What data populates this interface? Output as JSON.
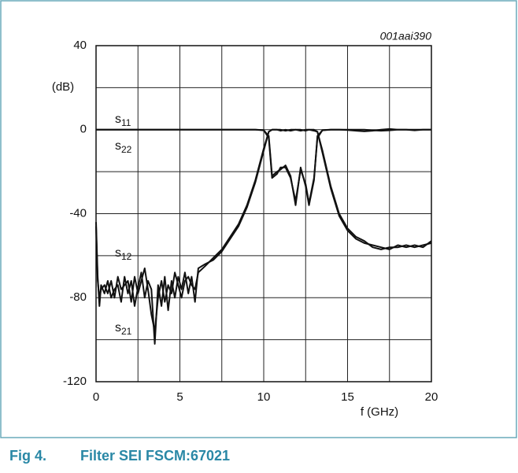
{
  "chart_data": {
    "type": "line",
    "title": "Filter SEI FSCM:67021",
    "figure_label": "Fig 4.",
    "figure_id": "001aai390",
    "y_label": "(dB)",
    "x_label": "f (GHz)",
    "xlim": [
      0,
      20
    ],
    "xticks": [
      0,
      5,
      10,
      15,
      20
    ],
    "xgrid": [
      2.5,
      7.5,
      12.5,
      17.5
    ],
    "ylim": [
      -120,
      40
    ],
    "yticks": [
      40,
      0,
      -40,
      -80,
      -120
    ],
    "ygrid": [
      20,
      -20,
      -60,
      -100
    ],
    "grid": true,
    "x": [
      0,
      0.1,
      0.2,
      0.3,
      0.5,
      0.7,
      0.9,
      1.1,
      1.3,
      1.5,
      1.7,
      1.9,
      2.1,
      2.3,
      2.5,
      2.7,
      2.9,
      3.1,
      3.3,
      3.5,
      3.7,
      3.9,
      4.1,
      4.3,
      4.5,
      4.7,
      4.9,
      5.1,
      5.3,
      5.5,
      5.7,
      5.9,
      6.1,
      6.5,
      7,
      7.5,
      8,
      8.5,
      9,
      9.5,
      10,
      10.3,
      10.5,
      10.8,
      11,
      11.3,
      11.6,
      11.9,
      12.2,
      12.5,
      12.7,
      13,
      13.2,
      13.5,
      14,
      14.5,
      15,
      15.5,
      16,
      16.5,
      17,
      17.5,
      18,
      18.5,
      19,
      19.5,
      20
    ],
    "series": [
      {
        "label": {
          "text": "s",
          "sub": "11"
        },
        "color": "#111111",
        "values": [
          0,
          0,
          0,
          0,
          0,
          0,
          0,
          0,
          0,
          0,
          0,
          0,
          0,
          0,
          0,
          0,
          0,
          0,
          0,
          0,
          0,
          0,
          0,
          0,
          0,
          0,
          0,
          0,
          0,
          0,
          0,
          0,
          0,
          0,
          0,
          0,
          0,
          0,
          0,
          0,
          -0.3,
          -3,
          -22,
          -20,
          -19,
          -17,
          -22,
          -36,
          -18,
          -27,
          -36,
          -24,
          -3,
          -0.3,
          0,
          0,
          0,
          0,
          0,
          -0.3,
          -0.5,
          -0.3,
          0,
          0,
          0,
          0,
          0
        ]
      },
      {
        "label": {
          "text": "s",
          "sub": "22"
        },
        "color": "#111111",
        "values": [
          0,
          0,
          0,
          0,
          0,
          0,
          0,
          0,
          0,
          0,
          0,
          0,
          0,
          0,
          0,
          0,
          0,
          0,
          0,
          0,
          0,
          0,
          0,
          0,
          0,
          0,
          0,
          0,
          0,
          0,
          0,
          0,
          0,
          0,
          0,
          0,
          0,
          0,
          0,
          0,
          -0.2,
          -4,
          -23,
          -21,
          -18,
          -18,
          -23,
          -34,
          -19,
          -26,
          -35,
          -23,
          -4,
          -0.2,
          0,
          0,
          -0.2,
          -0.5,
          -0.8,
          -0.5,
          0,
          0.3,
          0,
          0,
          -0.3,
          0,
          0
        ]
      },
      {
        "label": {
          "text": "s",
          "sub": "12"
        },
        "color": "#111111",
        "values": [
          -46,
          -72,
          -80,
          -76,
          -74,
          -78,
          -72,
          -80,
          -70,
          -76,
          -74,
          -72,
          -82,
          -70,
          -78,
          -72,
          -66,
          -76,
          -88,
          -96,
          -80,
          -72,
          -82,
          -74,
          -78,
          -68,
          -74,
          -80,
          -72,
          -70,
          -74,
          -76,
          -68,
          -65,
          -61,
          -57,
          -51,
          -45,
          -36,
          -24,
          -9,
          -1,
          0,
          0,
          0,
          -0.5,
          0,
          0,
          -0.5,
          0,
          0,
          -0.5,
          -1,
          -11,
          -28,
          -41,
          -48,
          -52,
          -54,
          -55,
          -56,
          -57,
          -55,
          -56,
          -55,
          -56,
          -53
        ]
      },
      {
        "label": {
          "text": "s",
          "sub": "21"
        },
        "color": "#111111",
        "values": [
          -44,
          -70,
          -84,
          -74,
          -78,
          -72,
          -80,
          -76,
          -74,
          -82,
          -70,
          -78,
          -72,
          -84,
          -75,
          -68,
          -80,
          -72,
          -76,
          -102,
          -74,
          -84,
          -70,
          -86,
          -72,
          -80,
          -70,
          -76,
          -68,
          -78,
          -70,
          -82,
          -66,
          -64,
          -62,
          -58,
          -52,
          -46,
          -37,
          -25,
          -10,
          -1,
          0,
          0,
          -0.5,
          0,
          -0.5,
          0,
          0,
          -0.5,
          0,
          0,
          -1,
          -10,
          -27,
          -40,
          -47,
          -51,
          -53,
          -56,
          -57,
          -56,
          -56,
          -55,
          -56,
          -55,
          -54
        ]
      }
    ]
  }
}
